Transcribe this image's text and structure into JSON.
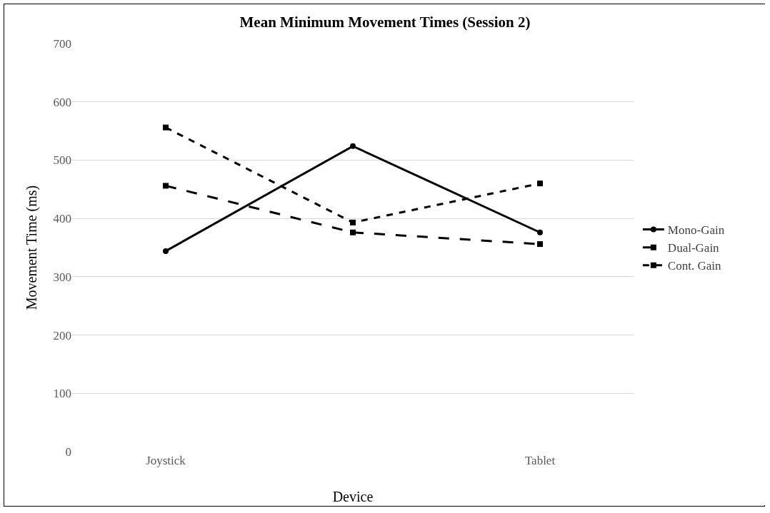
{
  "chart_data": {
    "type": "line",
    "title": "Mean Minimum Movement Times (Session 2)",
    "xlabel": "Device",
    "ylabel": "Movement Time (ms)",
    "categories": [
      "Joystick",
      null,
      "Tablet"
    ],
    "series": [
      {
        "name": "Mono-Gain",
        "color": "#000000",
        "values": [
          344,
          524,
          376
        ],
        "marker": "circle",
        "line_style": "solid"
      },
      {
        "name": "Dual-Gain",
        "color": "#000000",
        "values": [
          456,
          376,
          356
        ],
        "marker": "square",
        "line_style": "dashed"
      },
      {
        "name": "Cont. Gain",
        "color": "#000000",
        "values": [
          556,
          393,
          460
        ],
        "marker": "square",
        "line_style": "dotted"
      }
    ],
    "ylim": [
      0,
      700
    ],
    "yticks": [
      0,
      100,
      200,
      300,
      400,
      500,
      600,
      700
    ],
    "grid": "y",
    "legend": "right"
  }
}
